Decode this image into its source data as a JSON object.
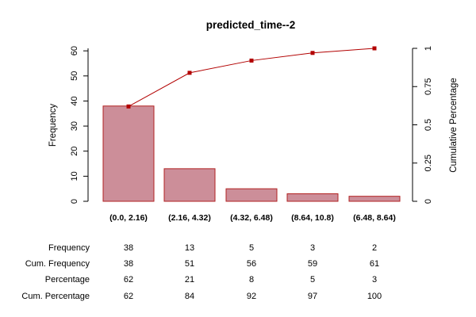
{
  "chart_data": {
    "type": "bar",
    "title": "predicted_time--2",
    "ylabel": "Frequency",
    "y2label": "Cumulative Percentage",
    "categories": [
      "(0.0, 2.16)",
      "(2.16, 4.32)",
      "(4.32, 6.48)",
      "(8.64, 10.8)",
      "(6.48, 8.64)"
    ],
    "values": [
      38,
      13,
      5,
      3,
      2
    ],
    "ylim": [
      0,
      61
    ],
    "y_ticks": [
      "0",
      "10",
      "20",
      "30",
      "40",
      "50",
      "60"
    ],
    "y2lim": [
      0,
      1
    ],
    "y2_ticks": [
      "0",
      "0.25",
      "0.5",
      "0.75",
      "1"
    ],
    "cumulative": [
      0.62,
      0.84,
      0.92,
      0.97,
      1.0
    ],
    "bar_color": "#cc8e99",
    "bar_border": "#b22222",
    "line_color": "#b20000",
    "table": {
      "rows": [
        {
          "label": "Frequency",
          "values": [
            "38",
            "13",
            "5",
            "3",
            "2"
          ]
        },
        {
          "label": "Cum. Frequency",
          "values": [
            "38",
            "51",
            "56",
            "59",
            "61"
          ]
        },
        {
          "label": "Percentage",
          "values": [
            "62",
            "21",
            "8",
            "5",
            "3"
          ]
        },
        {
          "label": "Cum. Percentage",
          "values": [
            "62",
            "84",
            "92",
            "97",
            "100"
          ]
        }
      ]
    }
  }
}
